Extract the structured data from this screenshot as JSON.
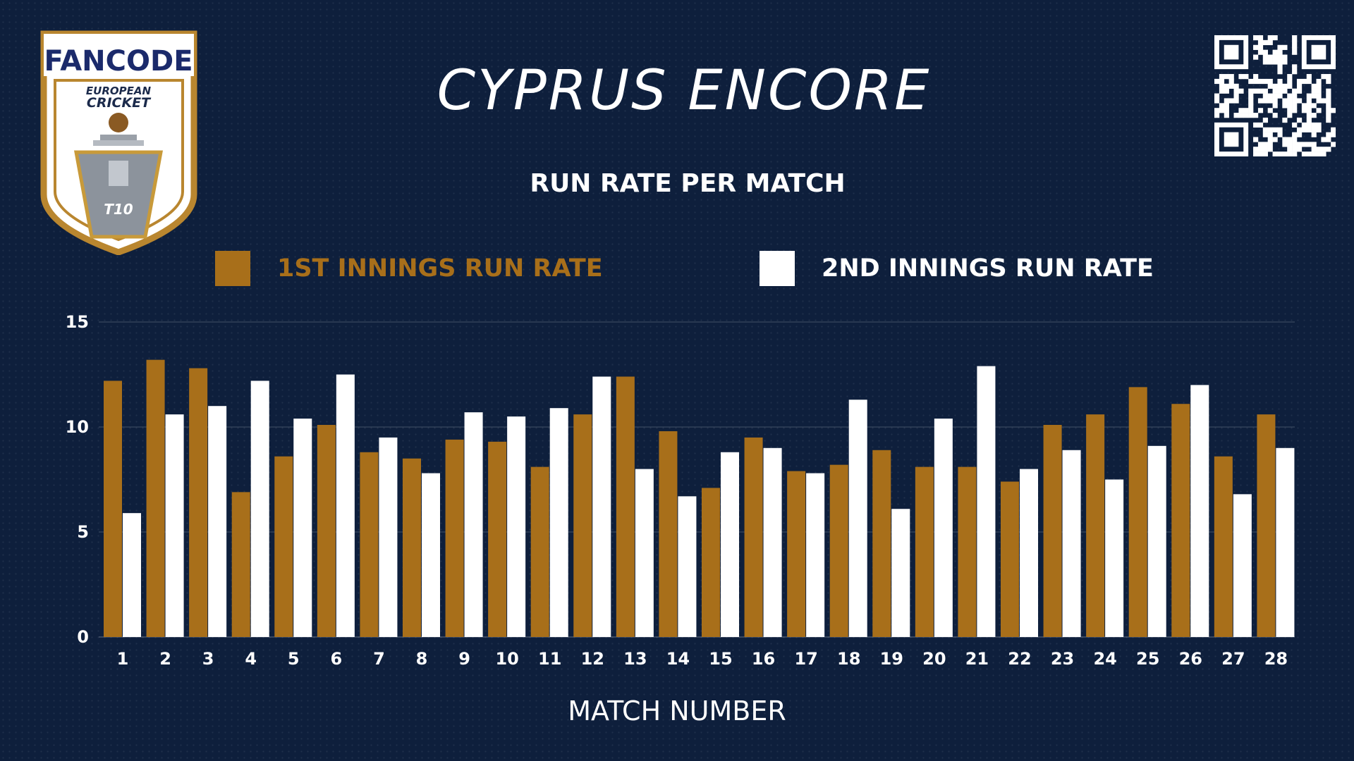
{
  "page": {
    "title": "CYPRUS ENCORE",
    "subtitle": "RUN RATE PER MATCH"
  },
  "logo": {
    "brand": "FANCODE",
    "line1": "EUROPEAN",
    "line2": "CRICKET",
    "badge": "T10"
  },
  "colors": {
    "background": "#0e1f3c",
    "first_innings": "#a86f1a",
    "second_innings": "#ffffff",
    "brand_red": "#d92b2b"
  },
  "chart_data": {
    "type": "bar",
    "title": "RUN RATE PER MATCH",
    "xlabel": "MATCH NUMBER",
    "ylabel": "",
    "ylim": [
      0,
      15
    ],
    "yticks": [
      0,
      5,
      10,
      15
    ],
    "grid": true,
    "legend_placement": "top",
    "categories": [
      "1",
      "2",
      "3",
      "4",
      "5",
      "6",
      "7",
      "8",
      "9",
      "10",
      "11",
      "12",
      "13",
      "14",
      "15",
      "16",
      "17",
      "18",
      "19",
      "20",
      "21",
      "22",
      "23",
      "24",
      "25",
      "26",
      "27",
      "28"
    ],
    "series": [
      {
        "name": "1ST INNINGS RUN RATE",
        "color": "#a86f1a",
        "values": [
          12.2,
          13.2,
          12.8,
          6.9,
          8.6,
          10.1,
          8.8,
          8.5,
          9.4,
          9.3,
          8.1,
          10.6,
          12.4,
          9.8,
          7.1,
          9.5,
          7.9,
          8.2,
          8.9,
          8.1,
          8.1,
          7.4,
          10.1,
          10.6,
          11.9,
          11.1,
          8.6,
          10.6
        ]
      },
      {
        "name": "2ND INNINGS RUN RATE",
        "color": "#ffffff",
        "values": [
          5.9,
          10.6,
          11.0,
          12.2,
          10.4,
          12.5,
          9.5,
          7.8,
          10.7,
          10.5,
          10.9,
          12.4,
          8.0,
          6.7,
          8.8,
          9.0,
          7.8,
          11.3,
          6.1,
          10.4,
          12.9,
          8.0,
          8.9,
          7.5,
          9.1,
          12.0,
          6.8,
          9.0
        ]
      }
    ]
  }
}
